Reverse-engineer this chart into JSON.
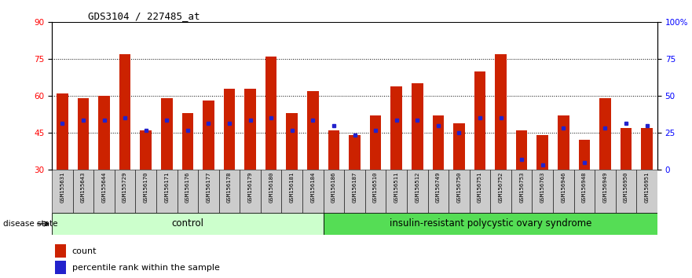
{
  "title": "GDS3104 / 227485_at",
  "samples": [
    "GSM155631",
    "GSM155643",
    "GSM155644",
    "GSM155729",
    "GSM156170",
    "GSM156171",
    "GSM156176",
    "GSM156177",
    "GSM156178",
    "GSM156179",
    "GSM156180",
    "GSM156181",
    "GSM156184",
    "GSM156186",
    "GSM156187",
    "GSM156510",
    "GSM156511",
    "GSM156512",
    "GSM156749",
    "GSM156750",
    "GSM156751",
    "GSM156752",
    "GSM156753",
    "GSM156763",
    "GSM156946",
    "GSM156948",
    "GSM156949",
    "GSM156950",
    "GSM156951"
  ],
  "bar_values": [
    61,
    59,
    60,
    77,
    46,
    59,
    53,
    58,
    63,
    63,
    76,
    53,
    62,
    46,
    44,
    52,
    64,
    65,
    52,
    49,
    70,
    77,
    46,
    44,
    52,
    42,
    59,
    47,
    47
  ],
  "blue_values": [
    49,
    50,
    50,
    51,
    46,
    50,
    46,
    49,
    49,
    50,
    51,
    46,
    50,
    48,
    44,
    46,
    50,
    50,
    48,
    45,
    51,
    51,
    34,
    32,
    47,
    33,
    47,
    49,
    48
  ],
  "ymin": 30,
  "ymax": 90,
  "yticks_left": [
    30,
    45,
    60,
    75,
    90
  ],
  "yticks_right_vals": [
    0,
    25,
    50,
    75,
    100
  ],
  "yticks_right_labels": [
    "0",
    "25",
    "50",
    "75",
    "100%"
  ],
  "dotted_lines": [
    45,
    60,
    75
  ],
  "control_count": 13,
  "bar_color": "#CC2200",
  "blue_color": "#2222CC",
  "control_label": "control",
  "disease_label": "insulin-resistant polycystic ovary syndrome",
  "control_bg": "#CCFFCC",
  "disease_bg": "#55DD55",
  "label_disease_state": "disease state",
  "legend_count": "count",
  "legend_percentile": "percentile rank within the sample",
  "sample_bg": "#CCCCCC"
}
